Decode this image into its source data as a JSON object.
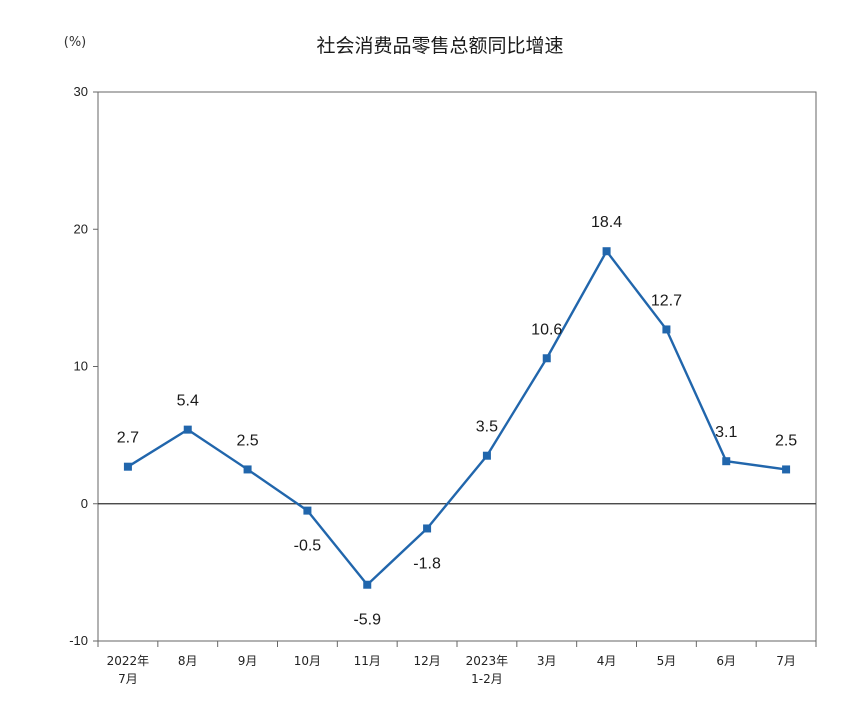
{
  "chart_data": {
    "type": "line",
    "title": "社会消费品零售总额同比增速",
    "ylabel": "(%)",
    "xlabel": "",
    "ylim": [
      -10,
      30
    ],
    "yticks": [
      30,
      20,
      10,
      0,
      -10
    ],
    "grid": false,
    "categories": [
      [
        "2022年",
        "7月"
      ],
      [
        "8月"
      ],
      [
        "9月"
      ],
      [
        "10月"
      ],
      [
        "11月"
      ],
      [
        "12月"
      ],
      [
        "2023年",
        "1-2月"
      ],
      [
        "3月"
      ],
      [
        "4月"
      ],
      [
        "5月"
      ],
      [
        "6月"
      ],
      [
        "7月"
      ]
    ],
    "series": [
      {
        "values": [
          2.7,
          5.4,
          2.5,
          -0.5,
          -5.9,
          -1.8,
          3.5,
          10.6,
          18.4,
          12.7,
          3.1,
          2.5
        ],
        "labels": [
          "2.7",
          "5.4",
          "2.5",
          "-0.5",
          "-5.9",
          "-1.8",
          "3.5",
          "10.6",
          "18.4",
          "12.7",
          "3.1",
          "2.5"
        ],
        "color": "#2166ac"
      }
    ]
  }
}
